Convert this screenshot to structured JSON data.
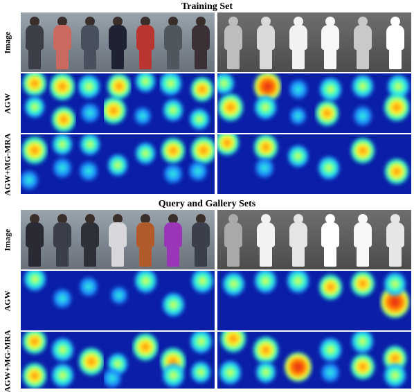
{
  "figure": {
    "training_title": "Training Set",
    "query_title": "Query and Gallery Sets"
  },
  "row_labels": {
    "image": "Image",
    "agw": "AGW",
    "agw_mg_mra": "AGW+MG-MRA"
  },
  "sets": [
    {
      "id": "training",
      "visible_colors": [
        "#3b3e47",
        "#c9695f",
        "#47505c",
        "#1e2233",
        "#b8362f",
        "#50565e",
        "#3b3036"
      ],
      "ir_colors": [
        "#bdbdbd",
        "#d9d9d9",
        "#f2f2f2",
        "#f7f7f7",
        "#c9c9c9",
        "#ffffff"
      ],
      "agw_heat": [
        [
          [
            0.5,
            0.15,
            0.6
          ],
          [
            0.5,
            0.55,
            0.4
          ]
        ],
        [
          [
            0.5,
            0.2,
            0.7
          ],
          [
            0.55,
            0.75,
            0.6
          ]
        ],
        [
          [
            0.45,
            0.2,
            0.5
          ],
          [
            0.5,
            0.65,
            0.3
          ]
        ],
        [
          [
            0.55,
            0.2,
            0.6
          ],
          [
            0.35,
            0.6,
            0.7
          ]
        ],
        [
          [
            0.5,
            0.12,
            0.4
          ],
          [
            0.4,
            0.7,
            0.2
          ]
        ],
        [
          [
            0.4,
            0.15,
            0.5
          ],
          [
            0.5,
            0.6,
            0.4
          ]
        ],
        [
          [
            0.55,
            0.25,
            0.55
          ],
          [
            0.45,
            0.75,
            0.35
          ]
        ],
        [
          [
            0.4,
            0.55,
            0.7
          ],
          [
            0.2,
            0.15,
            0.4
          ]
        ],
        [
          [
            0.55,
            0.2,
            0.8
          ],
          [
            0.5,
            0.55,
            0.5
          ]
        ],
        [
          [
            0.5,
            0.25,
            0.3
          ],
          [
            0.5,
            0.7,
            0.2
          ]
        ],
        [
          [
            0.5,
            0.25,
            0.5
          ],
          [
            0.4,
            0.65,
            0.6
          ]
        ],
        [
          [
            0.5,
            0.2,
            0.45
          ],
          [
            0.5,
            0.7,
            0.3
          ]
        ],
        [
          [
            0.6,
            0.2,
            0.5
          ],
          [
            0.55,
            0.55,
            0.7
          ]
        ]
      ],
      "mra_heat": [
        [
          [
            0.5,
            0.25,
            0.7
          ],
          [
            0.3,
            0.75,
            0.3
          ]
        ],
        [
          [
            0.5,
            0.15,
            0.4
          ],
          [
            0.5,
            0.55,
            0.3
          ]
        ],
        [
          [
            0.5,
            0.15,
            0.4
          ],
          [
            0.45,
            0.6,
            0.3
          ]
        ],
        [
          [
            0.5,
            0.5,
            0.4
          ]
        ],
        [
          [
            0.5,
            0.3,
            0.4
          ]
        ],
        [
          [
            0.5,
            0.25,
            0.6
          ],
          [
            0.5,
            0.65,
            0.3
          ]
        ],
        [
          [
            0.6,
            0.25,
            0.7
          ],
          [
            0.4,
            0.6,
            0.3
          ]
        ],
        [
          [
            0.3,
            0.12,
            0.6
          ]
        ],
        [
          [
            0.5,
            0.2,
            0.6
          ],
          [
            0.45,
            0.55,
            0.3
          ]
        ],
        [
          [
            0.5,
            0.35,
            0.4
          ]
        ],
        [
          [
            0.45,
            0.55,
            0.45
          ]
        ],
        [
          [
            0.5,
            0.25,
            0.6
          ]
        ],
        [
          [
            0.55,
            0.6,
            0.6
          ]
        ]
      ]
    },
    {
      "id": "query_gallery",
      "visible_colors": [
        "#2a2a34",
        "#3a3e48",
        "#2e3038",
        "#d8d8dc",
        "#b15a2a",
        "#9a35b8",
        "#3b3f4c"
      ],
      "ir_colors": [
        "#a9a9a9",
        "#f2f2f2",
        "#e5e5e5",
        "#ffffff",
        "#f7f7f7",
        "#e6e6e6"
      ],
      "agw_heat": [
        [
          [
            0.5,
            0.12,
            0.5
          ]
        ],
        [
          [
            0.5,
            0.45,
            0.3
          ]
        ],
        [
          [
            0.45,
            0.25,
            0.3
          ]
        ],
        [
          [
            0.55,
            0.4,
            0.2
          ]
        ],
        [
          [
            0.5,
            0.15,
            0.5
          ]
        ],
        [
          [
            0.5,
            0.55,
            0.5
          ]
        ],
        [
          [
            0.55,
            0.15,
            0.5
          ]
        ],
        [
          [
            0.5,
            0.2,
            0.5
          ]
        ],
        [
          [
            0.5,
            0.15,
            0.5
          ]
        ],
        [
          [
            0.5,
            0.15,
            0.5
          ]
        ],
        [
          [
            0.5,
            0.25,
            0.6
          ]
        ],
        [
          [
            0.5,
            0.2,
            0.6
          ]
        ],
        [
          [
            0.5,
            0.5,
            0.9
          ],
          [
            0.5,
            0.2,
            0.5
          ]
        ]
      ],
      "mra_heat": [
        [
          [
            0.5,
            0.15,
            0.6
          ],
          [
            0.5,
            0.75,
            0.6
          ]
        ],
        [
          [
            0.5,
            0.3,
            0.5
          ],
          [
            0.5,
            0.75,
            0.5
          ]
        ],
        [
          [
            0.55,
            0.5,
            0.7
          ]
        ],
        [
          [
            0.5,
            0.55,
            0.4
          ],
          [
            0.3,
            0.8,
            0.3
          ]
        ],
        [
          [
            0.5,
            0.25,
            0.7
          ]
        ],
        [
          [
            0.5,
            0.5,
            0.7
          ],
          [
            0.5,
            0.75,
            0.5
          ]
        ],
        [
          [
            0.5,
            0.15,
            0.5
          ],
          [
            0.5,
            0.7,
            0.4
          ]
        ],
        [
          [
            0.5,
            0.1,
            0.7
          ],
          [
            0.4,
            0.7,
            0.5
          ]
        ],
        [
          [
            0.5,
            0.3,
            0.7
          ],
          [
            0.5,
            0.7,
            0.4
          ]
        ],
        [
          [
            0.5,
            0.6,
            0.8
          ]
        ],
        [
          [
            0.5,
            0.3,
            0.5
          ],
          [
            0.5,
            0.7,
            0.3
          ]
        ],
        [
          [
            0.5,
            0.15,
            0.5
          ],
          [
            0.5,
            0.6,
            0.6
          ]
        ],
        [
          [
            0.5,
            0.45,
            0.6
          ],
          [
            0.5,
            0.75,
            0.5
          ]
        ]
      ]
    }
  ]
}
